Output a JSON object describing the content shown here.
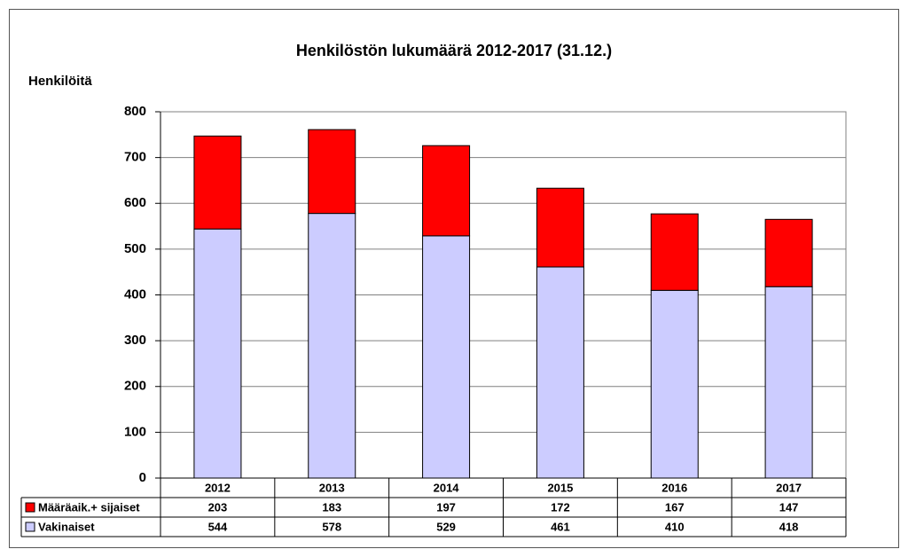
{
  "chart_data": {
    "type": "bar",
    "stacked": true,
    "title": "Henkilöstön lukumäärä 2012-2017 (31.12.)",
    "y_label": "Henkilöitä",
    "categories": [
      "2012",
      "2013",
      "2014",
      "2015",
      "2016",
      "2017"
    ],
    "series": [
      {
        "name": "Määräaik.+ sijaiset",
        "color": "#ff0000",
        "values": [
          203,
          183,
          197,
          172,
          167,
          147
        ]
      },
      {
        "name": "Vakinaiset",
        "color": "#ccccff",
        "values": [
          544,
          578,
          529,
          461,
          410,
          418
        ]
      }
    ],
    "ylim": [
      0,
      800
    ],
    "yticks": [
      0,
      100,
      200,
      300,
      400,
      500,
      600,
      700,
      800
    ],
    "grid": true
  }
}
